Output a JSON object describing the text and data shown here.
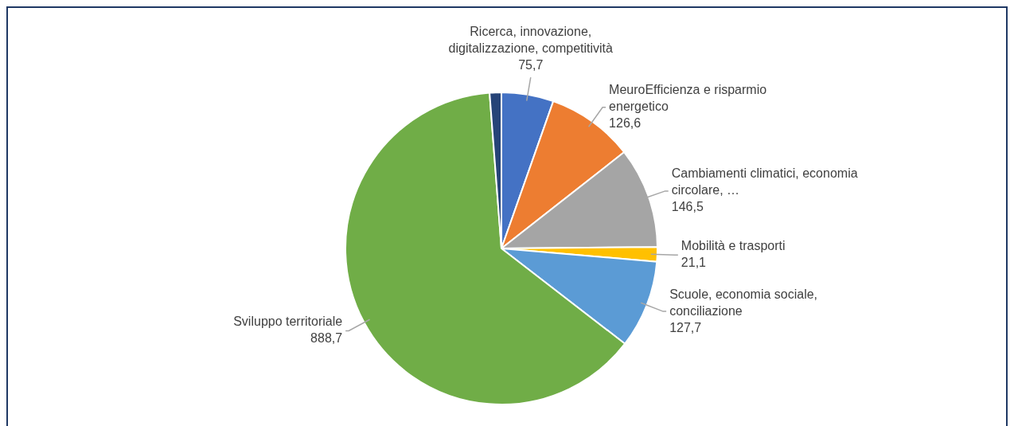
{
  "chart_data": {
    "type": "pie",
    "categories": [
      "Ricerca, innovazione, digitalizzazione, competitività",
      "MeuroEfficienza e risparmio energetico",
      "Cambiamenti climatici, economia circolare, …",
      "Mobilità e trasporti",
      "Scuole, economia sociale, conciliazione",
      "Sviluppo territoriale",
      null
    ],
    "values": [
      75.7,
      126.6,
      146.5,
      21.1,
      127.7,
      888.7,
      17
    ],
    "value_labels": [
      "75,7",
      "126,6",
      "146,5",
      "21,1",
      "127,7",
      "888,7",
      null
    ],
    "colors": [
      "#4472c4",
      "#ed7d31",
      "#a5a5a5",
      "#ffc000",
      "#5b9bd5",
      "#70ad47",
      "#264478"
    ],
    "legend": false
  }
}
